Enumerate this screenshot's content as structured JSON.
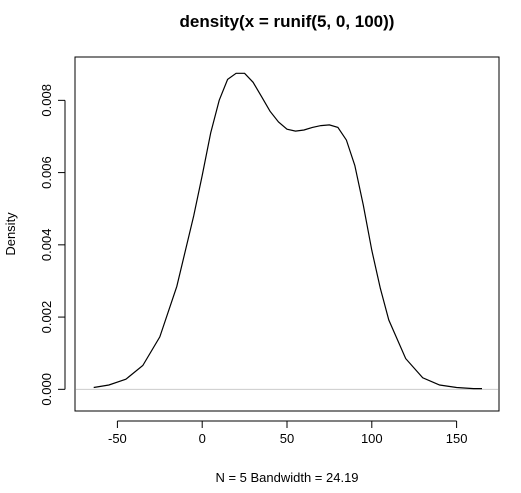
{
  "chart_data": {
    "type": "line",
    "title": "density(x = runif(5, 0, 100))",
    "xlabel": "N = 5   Bandwidth = 24.19",
    "ylabel": "Density",
    "xlim": [
      -75,
      175
    ],
    "ylim": [
      -0.0006,
      0.0092
    ],
    "x_ticks": [
      "-50",
      "0",
      "50",
      "100",
      "150"
    ],
    "y_ticks": [
      "0.000",
      "0.002",
      "0.004",
      "0.006",
      "0.008"
    ],
    "series": [
      {
        "x": [
          -64,
          -55,
          -45,
          -35,
          -25,
          -15,
          -5,
          0,
          5,
          10,
          15,
          20,
          25,
          30,
          35,
          40,
          45,
          50,
          55,
          60,
          65,
          70,
          75,
          80,
          85,
          90,
          95,
          100,
          105,
          110,
          120,
          130,
          140,
          150,
          160,
          165
        ],
        "y": [
          5e-05,
          0.00012,
          0.00028,
          0.00066,
          0.00145,
          0.00285,
          0.0048,
          0.00592,
          0.0071,
          0.008,
          0.00858,
          0.00875,
          0.00875,
          0.0085,
          0.0081,
          0.0077,
          0.0074,
          0.0072,
          0.00715,
          0.00718,
          0.00725,
          0.0073,
          0.00732,
          0.00725,
          0.0069,
          0.0062,
          0.0051,
          0.00385,
          0.0028,
          0.00192,
          0.00085,
          0.00032,
          0.00012,
          5e-05,
          2e-05,
          2e-05
        ]
      }
    ],
    "grid": false,
    "legend": "none"
  }
}
